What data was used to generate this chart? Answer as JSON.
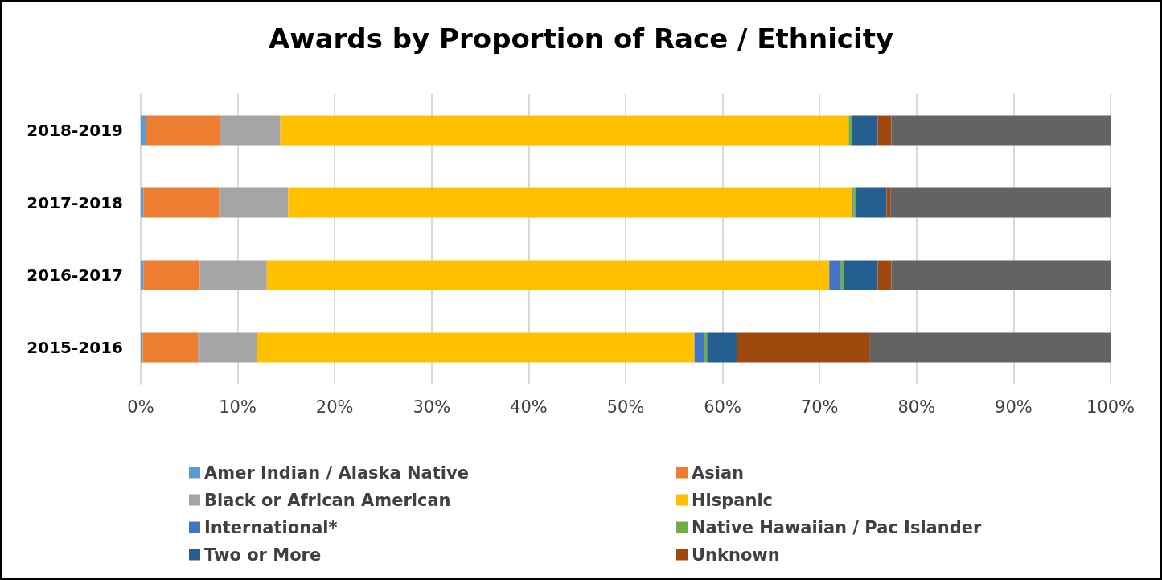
{
  "chart_data": {
    "type": "bar",
    "title": "Awards by Proportion of Race / Ethnicity",
    "orientation": "horizontal",
    "stacked": true,
    "categories": [
      "2018-2019",
      "2017-2018",
      "2016-2017",
      "2015-2016"
    ],
    "series": [
      {
        "name": "Amer Indian / Alaska Native",
        "color": "#5b9bd5",
        "values": [
          0.5,
          0.3,
          0.3,
          0.2
        ]
      },
      {
        "name": "Asian",
        "color": "#ed7d31",
        "values": [
          7.7,
          7.8,
          5.8,
          5.7
        ]
      },
      {
        "name": "Black or African American",
        "color": "#a5a5a5",
        "values": [
          6.2,
          7.1,
          6.9,
          6.1
        ]
      },
      {
        "name": "Hispanic",
        "color": "#ffc000",
        "values": [
          58.6,
          58.2,
          58.0,
          45.1
        ]
      },
      {
        "name": "International*",
        "color": "#4472c4",
        "values": [
          0,
          0.1,
          1.2,
          1.0
        ]
      },
      {
        "name": "Native Hawaiian / Pac Islander",
        "color": "#70ad47",
        "values": [
          0.3,
          0.3,
          0.3,
          0.3
        ]
      },
      {
        "name": "Two or More",
        "color": "#255e91",
        "values": [
          2.7,
          3.1,
          3.5,
          3.1
        ]
      },
      {
        "name": "Unknown",
        "color": "#9e480e",
        "values": [
          1.4,
          0.4,
          1.4,
          13.7
        ]
      },
      {
        "color": "#636363",
        "values": [
          22.6,
          22.7,
          22.6,
          24.8
        ]
      }
    ],
    "xlim": [
      0,
      100
    ],
    "xticks": [
      {
        "value": 0,
        "label": "0%"
      },
      {
        "value": 10,
        "label": "10%"
      },
      {
        "value": 20,
        "label": "20%"
      },
      {
        "value": 30,
        "label": "30%"
      },
      {
        "value": 40,
        "label": "40%"
      },
      {
        "value": 50,
        "label": "50%"
      },
      {
        "value": 60,
        "label": "60%"
      },
      {
        "value": 70,
        "label": "70%"
      },
      {
        "value": 80,
        "label": "80%"
      },
      {
        "value": 90,
        "label": "90%"
      },
      {
        "value": 100,
        "label": "100%"
      }
    ],
    "grid": "x",
    "legend": "bottom"
  }
}
